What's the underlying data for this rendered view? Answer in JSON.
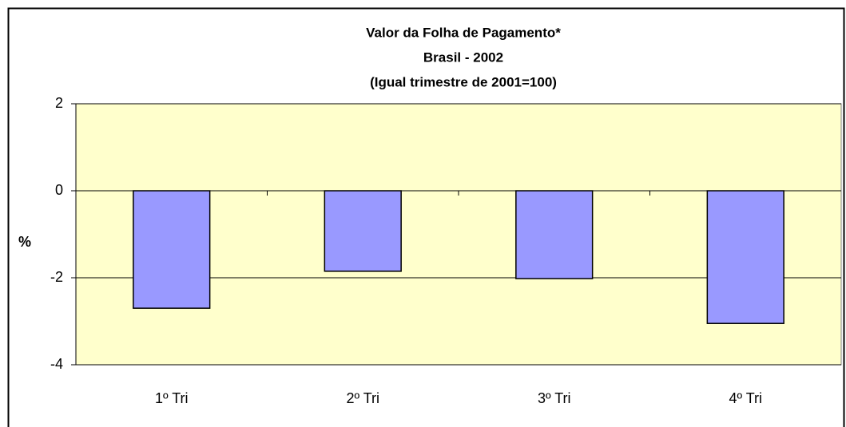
{
  "chart_data": {
    "type": "bar",
    "title": [
      "Valor da Folha de Pagamento*",
      "Brasil - 2002",
      "(Igual trimestre de 2001=100)"
    ],
    "y_label": "%",
    "categories": [
      "1º Tri",
      "2º Tri",
      "3º Tri",
      "4º Tri"
    ],
    "values": [
      -2.7,
      -1.85,
      -2.02,
      -3.05
    ],
    "color": "#9999ff",
    "ylim": [
      -4,
      2
    ],
    "yticks": [
      -4,
      -2,
      0,
      2
    ],
    "grid": true
  }
}
